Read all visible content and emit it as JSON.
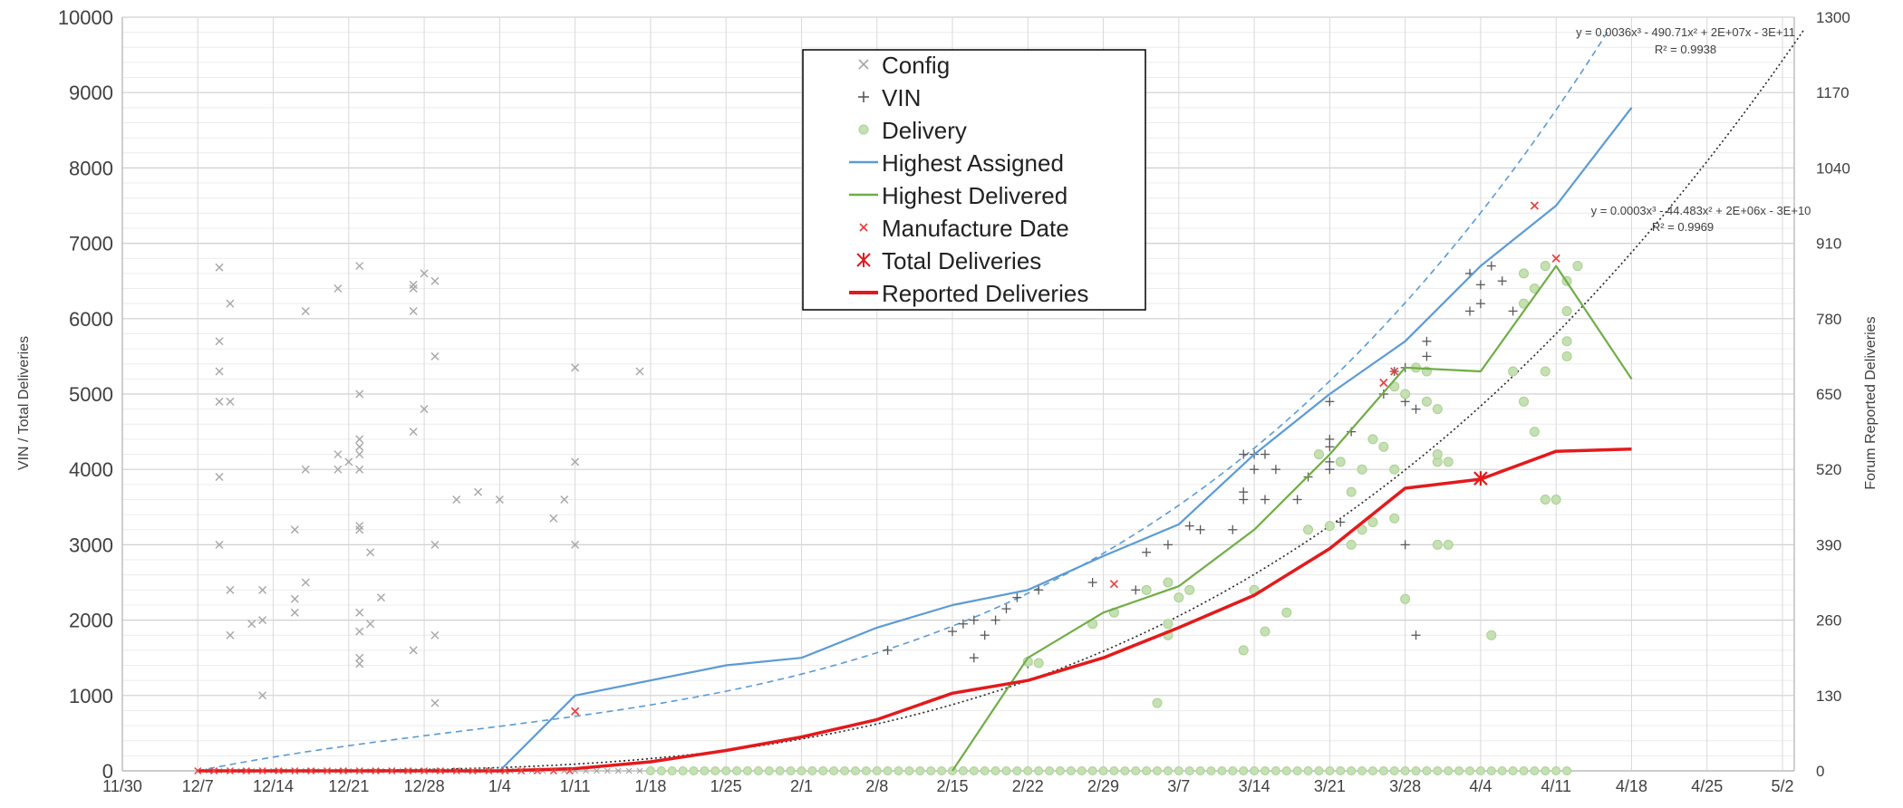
{
  "chart_data": {
    "type": "line",
    "xlabel": "",
    "ylabel": "VIN / Total Deliveries",
    "y2label": "Forum Reported Deliveries",
    "ylim": [
      0,
      10000
    ],
    "y2lim": [
      0,
      1300
    ],
    "grid": true,
    "legend_placement": "top-center",
    "x_tick_labels": [
      "11/30",
      "12/7",
      "12/14",
      "12/21",
      "12/28",
      "1/4",
      "1/11",
      "1/18",
      "1/25",
      "2/1",
      "2/8",
      "2/15",
      "2/22",
      "2/29",
      "3/7",
      "3/14",
      "3/21",
      "3/28",
      "4/4",
      "4/11",
      "4/18",
      "4/25",
      "5/2"
    ],
    "y_tick_labels": [
      "0",
      "1000",
      "2000",
      "3000",
      "4000",
      "5000",
      "6000",
      "7000",
      "8000",
      "9000",
      "10000"
    ],
    "y2_tick_labels": [
      "0",
      "130",
      "260",
      "390",
      "520",
      "650",
      "780",
      "910",
      "1040",
      "1170",
      "1300"
    ],
    "legend": {
      "config": "Config",
      "vin": "VIN",
      "delivery": "Delivery",
      "highest_assigned": "Highest Assigned",
      "highest_delivered": "Highest Delivered",
      "manufacture_date": "Manufacture Date",
      "total_deliveries": "Total Deliveries",
      "reported_deliveries": "Reported Deliveries"
    },
    "trendlines": {
      "blue": {
        "equation": "y = 0.0036x³ - 490.71x² + 2E+07x - 3E+11",
        "r2": "R² = 0.9938"
      },
      "black": {
        "equation": "y = 0.0003x³ - 44.483x² + 2E+06x - 3E+10",
        "r2": "R² = 0.9969"
      }
    },
    "colors": {
      "highest_assigned": "#5b9bd5",
      "highest_delivered": "#70ad47",
      "reported_deliveries": "#e31a1c",
      "manufacture_date": "#e8413e",
      "config": "#a6a6a6",
      "vin": "#595959",
      "delivery_fill": "#c5e0b4",
      "delivery_stroke": "#a9d18e",
      "trend_black": "#262626"
    },
    "series": [
      {
        "name": "Highest Assigned",
        "type": "line",
        "points": [
          [
            "12/7",
            0
          ],
          [
            "12/14",
            0
          ],
          [
            "12/21",
            0
          ],
          [
            "12/28",
            0
          ],
          [
            "1/4",
            0
          ],
          [
            "1/11",
            1000
          ],
          [
            "1/25",
            1400
          ],
          [
            "2/1",
            1500
          ],
          [
            "2/8",
            1900
          ],
          [
            "2/15",
            2200
          ],
          [
            "2/22",
            2400
          ],
          [
            "2/29",
            2850
          ],
          [
            "3/7",
            3270
          ],
          [
            "3/14",
            4200
          ],
          [
            "3/21",
            5000
          ],
          [
            "3/28",
            5700
          ],
          [
            "4/4",
            6700
          ],
          [
            "4/11",
            7500
          ],
          [
            "4/18",
            8800
          ]
        ]
      },
      {
        "name": "Highest Delivered",
        "type": "line",
        "points": [
          [
            "2/15",
            0
          ],
          [
            "2/22",
            1500
          ],
          [
            "2/29",
            2100
          ],
          [
            "3/7",
            2450
          ],
          [
            "3/14",
            3200
          ],
          [
            "3/21",
            4200
          ],
          [
            "3/28",
            5350
          ],
          [
            "4/4",
            5300
          ],
          [
            "4/11",
            6700
          ],
          [
            "4/18",
            5200
          ]
        ]
      },
      {
        "name": "Reported Deliveries",
        "type": "line",
        "points": [
          [
            "12/7",
            0
          ],
          [
            "12/14",
            0
          ],
          [
            "12/21",
            0
          ],
          [
            "12/28",
            0
          ],
          [
            "1/4",
            0
          ],
          [
            "1/11",
            30
          ],
          [
            "1/18",
            120
          ],
          [
            "1/25",
            270
          ],
          [
            "2/1",
            450
          ],
          [
            "2/8",
            680
          ],
          [
            "2/15",
            1030
          ],
          [
            "2/22",
            1200
          ],
          [
            "2/29",
            1500
          ],
          [
            "3/7",
            1900
          ],
          [
            "3/14",
            2330
          ],
          [
            "3/21",
            2950
          ],
          [
            "3/28",
            3750
          ],
          [
            "4/4",
            3870
          ],
          [
            "4/11",
            4240
          ],
          [
            "4/18",
            4270
          ]
        ]
      },
      {
        "name": "Total Deliveries",
        "type": "marker",
        "points": [
          [
            "4/4",
            3880
          ]
        ]
      },
      {
        "name": "Manufacture Date",
        "type": "scatter",
        "points": [
          [
            "1/11",
            790
          ],
          [
            "3/1",
            2480
          ],
          [
            "3/26",
            5150
          ],
          [
            "3/27",
            5300
          ],
          [
            "4/9",
            7500
          ],
          [
            "4/11",
            6800
          ]
        ]
      },
      {
        "name": "Config",
        "type": "scatter",
        "points": [
          [
            "12/9",
            6680
          ],
          [
            "12/9",
            5700
          ],
          [
            "12/9",
            5300
          ],
          [
            "12/9",
            4900
          ],
          [
            "12/9",
            3900
          ],
          [
            "12/9",
            3000
          ],
          [
            "12/10",
            6200
          ],
          [
            "12/10",
            4900
          ],
          [
            "12/10",
            2400
          ],
          [
            "12/10",
            1800
          ],
          [
            "12/12",
            1950
          ],
          [
            "12/13",
            2400
          ],
          [
            "12/13",
            2000
          ],
          [
            "12/13",
            1000
          ],
          [
            "12/16",
            3200
          ],
          [
            "12/16",
            2280
          ],
          [
            "12/16",
            2100
          ],
          [
            "12/17",
            6100
          ],
          [
            "12/17",
            4000
          ],
          [
            "12/17",
            2500
          ],
          [
            "12/20",
            6400
          ],
          [
            "12/20",
            4200
          ],
          [
            "12/20",
            4000
          ],
          [
            "12/21",
            4100
          ],
          [
            "12/22",
            6700
          ],
          [
            "12/22",
            5000
          ],
          [
            "12/22",
            4400
          ],
          [
            "12/22",
            4300
          ],
          [
            "12/22",
            4200
          ],
          [
            "12/22",
            4000
          ],
          [
            "12/22",
            3250
          ],
          [
            "12/22",
            3200
          ],
          [
            "12/22",
            2100
          ],
          [
            "12/22",
            1850
          ],
          [
            "12/22",
            1500
          ],
          [
            "12/22",
            1420
          ],
          [
            "12/23",
            2900
          ],
          [
            "12/23",
            1950
          ],
          [
            "12/24",
            2300
          ],
          [
            "12/27",
            6400
          ],
          [
            "12/27",
            6450
          ],
          [
            "12/27",
            6100
          ],
          [
            "12/27",
            4500
          ],
          [
            "12/27",
            1600
          ],
          [
            "12/28",
            6600
          ],
          [
            "12/28",
            4800
          ],
          [
            "12/29",
            6500
          ],
          [
            "12/29",
            5500
          ],
          [
            "12/29",
            3000
          ],
          [
            "12/29",
            1800
          ],
          [
            "12/29",
            900
          ],
          [
            "12/31",
            3600
          ],
          [
            "1/2",
            3700
          ],
          [
            "1/4",
            3600
          ],
          [
            "1/9",
            3350
          ],
          [
            "1/10",
            3600
          ],
          [
            "1/11",
            5350
          ],
          [
            "1/11",
            4100
          ],
          [
            "1/11",
            3000
          ],
          [
            "1/17",
            5300
          ]
        ]
      },
      {
        "name": "VIN",
        "type": "scatter",
        "points": [
          [
            "2/9",
            1600
          ],
          [
            "2/15",
            1850
          ],
          [
            "2/16",
            1950
          ],
          [
            "2/17",
            1500
          ],
          [
            "2/17",
            2000
          ],
          [
            "2/18",
            1800
          ],
          [
            "2/19",
            2000
          ],
          [
            "2/20",
            2150
          ],
          [
            "2/21",
            2300
          ],
          [
            "2/22",
            1420
          ],
          [
            "2/23",
            2400
          ],
          [
            "2/28",
            2500
          ],
          [
            "3/3",
            2400
          ],
          [
            "3/4",
            2900
          ],
          [
            "3/5",
            900
          ],
          [
            "3/6",
            3000
          ],
          [
            "3/8",
            3250
          ],
          [
            "3/9",
            3200
          ],
          [
            "3/12",
            3200
          ],
          [
            "3/13",
            4200
          ],
          [
            "3/13",
            3700
          ],
          [
            "3/13",
            3600
          ],
          [
            "3/14",
            4000
          ],
          [
            "3/14",
            4200
          ],
          [
            "3/15",
            4200
          ],
          [
            "3/15",
            3600
          ],
          [
            "3/16",
            4000
          ],
          [
            "3/18",
            3600
          ],
          [
            "3/19",
            3900
          ],
          [
            "3/21",
            4900
          ],
          [
            "3/21",
            4400
          ],
          [
            "3/21",
            4300
          ],
          [
            "3/21",
            4100
          ],
          [
            "3/21",
            4000
          ],
          [
            "3/22",
            3300
          ],
          [
            "3/23",
            4500
          ],
          [
            "3/26",
            5000
          ],
          [
            "3/27",
            5300
          ],
          [
            "3/28",
            5350
          ],
          [
            "3/28",
            4900
          ],
          [
            "3/28",
            3000
          ],
          [
            "3/29",
            4800
          ],
          [
            "3/29",
            1800
          ],
          [
            "3/30",
            5700
          ],
          [
            "3/30",
            5500
          ],
          [
            "4/3",
            6600
          ],
          [
            "4/3",
            6100
          ],
          [
            "4/4",
            6450
          ],
          [
            "4/4",
            6200
          ],
          [
            "4/5",
            6700
          ],
          [
            "4/6",
            6500
          ],
          [
            "4/7",
            6100
          ],
          [
            "4/10",
            6700
          ]
        ]
      },
      {
        "name": "Delivery",
        "type": "scatter",
        "points": [
          [
            "2/22",
            1450
          ],
          [
            "2/23",
            1430
          ],
          [
            "2/28",
            1950
          ],
          [
            "3/1",
            2100
          ],
          [
            "3/4",
            2400
          ],
          [
            "3/5",
            900
          ],
          [
            "3/6",
            2500
          ],
          [
            "3/6",
            1800
          ],
          [
            "3/6",
            1950
          ],
          [
            "3/7",
            2300
          ],
          [
            "3/8",
            2400
          ],
          [
            "3/13",
            1600
          ],
          [
            "3/14",
            2400
          ],
          [
            "3/15",
            1850
          ],
          [
            "3/17",
            2100
          ],
          [
            "3/19",
            3200
          ],
          [
            "3/20",
            4200
          ],
          [
            "3/21",
            3250
          ],
          [
            "3/22",
            4100
          ],
          [
            "3/23",
            3700
          ],
          [
            "3/23",
            3000
          ],
          [
            "3/24",
            4000
          ],
          [
            "3/24",
            3200
          ],
          [
            "3/25",
            4400
          ],
          [
            "3/25",
            3300
          ],
          [
            "3/26",
            4300
          ],
          [
            "3/27",
            5100
          ],
          [
            "3/27",
            3350
          ],
          [
            "3/27",
            4000
          ],
          [
            "3/28",
            5000
          ],
          [
            "3/28",
            2280
          ],
          [
            "3/29",
            5350
          ],
          [
            "3/30",
            5300
          ],
          [
            "3/30",
            4900
          ],
          [
            "3/31",
            4800
          ],
          [
            "3/31",
            4100
          ],
          [
            "3/31",
            4200
          ],
          [
            "3/31",
            3000
          ],
          [
            "4/1",
            4100
          ],
          [
            "4/1",
            3000
          ],
          [
            "4/5",
            1800
          ],
          [
            "4/7",
            5300
          ],
          [
            "4/8",
            6600
          ],
          [
            "4/8",
            6200
          ],
          [
            "4/8",
            4900
          ],
          [
            "4/9",
            6400
          ],
          [
            "4/9",
            4500
          ],
          [
            "4/10",
            6700
          ],
          [
            "4/10",
            5300
          ],
          [
            "4/10",
            3600
          ],
          [
            "4/11",
            3600
          ],
          [
            "4/12",
            6500
          ],
          [
            "4/12",
            6100
          ],
          [
            "4/12",
            5700
          ],
          [
            "4/12",
            5500
          ],
          [
            "4/13",
            6700
          ]
        ]
      }
    ]
  }
}
